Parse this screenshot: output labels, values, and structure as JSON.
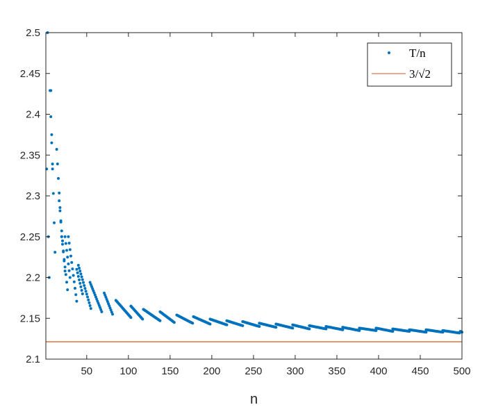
{
  "chart_data": {
    "type": "scatter",
    "xlabel": "n",
    "ylabel": "",
    "xlim": [
      1,
      500
    ],
    "ylim": [
      2.1,
      2.5
    ],
    "xticks": [
      50,
      100,
      150,
      200,
      250,
      300,
      350,
      400,
      450,
      500
    ],
    "xtick_labels": [
      "50",
      "100",
      "150",
      "200",
      "250",
      "300",
      "350",
      "400",
      "450",
      "500"
    ],
    "yticks": [
      2.1,
      2.15,
      2.2,
      2.25,
      2.3,
      2.35,
      2.4,
      2.45,
      2.5
    ],
    "ytick_labels": [
      "2.1",
      "2.15",
      "2.2",
      "2.25",
      "2.3",
      "2.35",
      "2.4",
      "2.45",
      "2.5"
    ],
    "grid": false,
    "legend_position": "top-right",
    "series": [
      {
        "name": "T/n",
        "kind": "scatter",
        "color": "#0072BD",
        "note_segments": [
          {
            "x_start": 2,
            "x_end": 2,
            "y_start": 2.333,
            "y_end": 2.333
          },
          {
            "x_start": 3,
            "x_end": 4,
            "y_start": 2.5,
            "y_end": 2.25
          },
          {
            "x_start": 5,
            "x_end": 5,
            "y_start": 2.2,
            "y_end": 2.2
          },
          {
            "x_start": 6,
            "x_end": 9,
            "y_start": 2.429,
            "y_end": 2.333
          },
          {
            "x_start": 7,
            "x_end": 7,
            "y_start": 2.429,
            "y_end": 2.429
          },
          {
            "x_start": 8,
            "x_end": 12,
            "y_start": 2.375,
            "y_end": 2.231
          },
          {
            "x_start": 14,
            "x_end": 20,
            "y_start": 2.357,
            "y_end": 2.25
          },
          {
            "x_start": 17,
            "x_end": 24,
            "y_start": 2.294,
            "y_end": 2.208
          },
          {
            "x_start": 20,
            "x_end": 27,
            "y_start": 2.25,
            "y_end": 2.185
          },
          {
            "x_start": 24,
            "x_end": 30,
            "y_start": 2.25,
            "y_end": 2.2
          },
          {
            "x_start": 28,
            "x_end": 38,
            "y_start": 2.25,
            "y_end": 2.171
          },
          {
            "x_start": 38,
            "x_end": 45,
            "y_start": 2.21,
            "y_end": 2.18
          },
          {
            "x_start": 40,
            "x_end": 55,
            "y_start": 2.215,
            "y_end": 2.162
          },
          {
            "x_start": 54,
            "x_end": 68,
            "y_start": 2.194,
            "y_end": 2.158
          },
          {
            "x_start": 71,
            "x_end": 81,
            "y_start": 2.181,
            "y_end": 2.155
          },
          {
            "x_start": 85,
            "x_end": 103,
            "y_start": 2.172,
            "y_end": 2.151
          },
          {
            "x_start": 103,
            "x_end": 117,
            "y_start": 2.165,
            "y_end": 2.149
          },
          {
            "x_start": 118,
            "x_end": 138,
            "y_start": 2.161,
            "y_end": 2.147
          },
          {
            "x_start": 138,
            "x_end": 155,
            "y_start": 2.158,
            "y_end": 2.145
          },
          {
            "x_start": 158,
            "x_end": 177,
            "y_start": 2.154,
            "y_end": 2.144
          },
          {
            "x_start": 178,
            "x_end": 198,
            "y_start": 2.152,
            "y_end": 2.143
          },
          {
            "x_start": 198,
            "x_end": 218,
            "y_start": 2.149,
            "y_end": 2.142
          },
          {
            "x_start": 218,
            "x_end": 237,
            "y_start": 2.147,
            "y_end": 2.141
          },
          {
            "x_start": 237,
            "x_end": 257,
            "y_start": 2.146,
            "y_end": 2.14
          },
          {
            "x_start": 257,
            "x_end": 277,
            "y_start": 2.144,
            "y_end": 2.139
          },
          {
            "x_start": 277,
            "x_end": 297,
            "y_start": 2.143,
            "y_end": 2.138
          },
          {
            "x_start": 297,
            "x_end": 317,
            "y_start": 2.142,
            "y_end": 2.137
          },
          {
            "x_start": 317,
            "x_end": 337,
            "y_start": 2.141,
            "y_end": 2.137
          },
          {
            "x_start": 337,
            "x_end": 357,
            "y_start": 2.14,
            "y_end": 2.136
          },
          {
            "x_start": 357,
            "x_end": 377,
            "y_start": 2.139,
            "y_end": 2.135
          },
          {
            "x_start": 377,
            "x_end": 397,
            "y_start": 2.138,
            "y_end": 2.135
          },
          {
            "x_start": 397,
            "x_end": 417,
            "y_start": 2.138,
            "y_end": 2.134
          },
          {
            "x_start": 417,
            "x_end": 437,
            "y_start": 2.137,
            "y_end": 2.134
          },
          {
            "x_start": 437,
            "x_end": 457,
            "y_start": 2.136,
            "y_end": 2.133
          },
          {
            "x_start": 457,
            "x_end": 477,
            "y_start": 2.136,
            "y_end": 2.133
          },
          {
            "x_start": 477,
            "x_end": 497,
            "y_start": 2.135,
            "y_end": 2.132
          },
          {
            "x_start": 498,
            "x_end": 500,
            "y_start": 2.134,
            "y_end": 2.133
          }
        ]
      },
      {
        "name": "3/√2",
        "kind": "line",
        "color": "#D95319",
        "y": 2.1213
      }
    ],
    "legend": {
      "entries": [
        "T/n",
        "3/√2"
      ]
    }
  }
}
